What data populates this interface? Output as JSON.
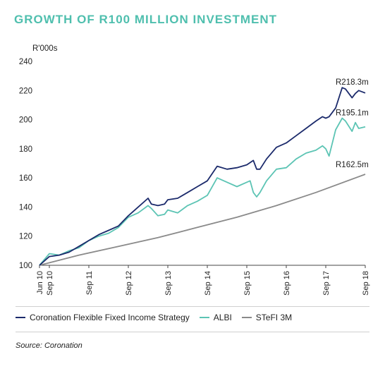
{
  "title": "GROWTH OF R100 MILLION INVESTMENT",
  "source": "Source: Coronation",
  "colors": {
    "title": "#4fbfae",
    "cfs": "#1b2a6b",
    "albi": "#5cc4b4",
    "stefi": "#8a8a8a"
  },
  "chart_data": {
    "type": "line",
    "ylabel": "R'000s",
    "ylim": [
      100,
      240
    ],
    "yticks": [
      100,
      120,
      140,
      160,
      180,
      200,
      220,
      240
    ],
    "xlim": [
      0,
      99
    ],
    "x_tick_labels": [
      {
        "label": "Jun 10",
        "x": 0
      },
      {
        "label": "Sep 10",
        "x": 3
      },
      {
        "label": "Sep 11",
        "x": 15
      },
      {
        "label": "Sep 12",
        "x": 27
      },
      {
        "label": "Sep 13",
        "x": 39
      },
      {
        "label": "Sep 14",
        "x": 51
      },
      {
        "label": "Sep 15",
        "x": 63
      },
      {
        "label": "Sep 16",
        "x": 75
      },
      {
        "label": "Sep 17",
        "x": 87
      },
      {
        "label": "Sep 18",
        "x": 99
      }
    ],
    "grid": false,
    "legend": "bottom",
    "series": [
      {
        "name": "Coronation Flexible Fixed Income Strategy",
        "color": "#1b2a6b",
        "end_label": "R218.3m",
        "points": [
          [
            0,
            100
          ],
          [
            3,
            106
          ],
          [
            6,
            107
          ],
          [
            9,
            109
          ],
          [
            12,
            113
          ],
          [
            15,
            117
          ],
          [
            18,
            121
          ],
          [
            21,
            124
          ],
          [
            24,
            127
          ],
          [
            27,
            134
          ],
          [
            30,
            140
          ],
          [
            33,
            146
          ],
          [
            34,
            142
          ],
          [
            36,
            141
          ],
          [
            38,
            142
          ],
          [
            39,
            145
          ],
          [
            42,
            146
          ],
          [
            45,
            150
          ],
          [
            48,
            154
          ],
          [
            51,
            158
          ],
          [
            54,
            168
          ],
          [
            57,
            166
          ],
          [
            60,
            167
          ],
          [
            63,
            169
          ],
          [
            65,
            172
          ],
          [
            66,
            166
          ],
          [
            67,
            166
          ],
          [
            69,
            173
          ],
          [
            72,
            181
          ],
          [
            75,
            184
          ],
          [
            78,
            189
          ],
          [
            81,
            194
          ],
          [
            84,
            199
          ],
          [
            86,
            202
          ],
          [
            87,
            201
          ],
          [
            88,
            202
          ],
          [
            90,
            208
          ],
          [
            92,
            222
          ],
          [
            93,
            221
          ],
          [
            95,
            215
          ],
          [
            96,
            218
          ],
          [
            97,
            220
          ],
          [
            99,
            218.3
          ]
        ]
      },
      {
        "name": "ALBI",
        "color": "#5cc4b4",
        "end_label": "R195.1m",
        "points": [
          [
            0,
            100
          ],
          [
            3,
            108
          ],
          [
            6,
            107
          ],
          [
            9,
            110
          ],
          [
            12,
            112
          ],
          [
            15,
            117
          ],
          [
            18,
            120
          ],
          [
            21,
            122
          ],
          [
            24,
            126
          ],
          [
            27,
            133
          ],
          [
            30,
            136
          ],
          [
            33,
            141
          ],
          [
            34,
            139
          ],
          [
            36,
            134
          ],
          [
            38,
            135
          ],
          [
            39,
            138
          ],
          [
            42,
            136
          ],
          [
            45,
            141
          ],
          [
            48,
            144
          ],
          [
            51,
            148
          ],
          [
            54,
            160
          ],
          [
            57,
            157
          ],
          [
            60,
            154
          ],
          [
            63,
            157
          ],
          [
            64,
            158
          ],
          [
            65,
            150
          ],
          [
            66,
            147
          ],
          [
            67,
            150
          ],
          [
            69,
            158
          ],
          [
            72,
            166
          ],
          [
            75,
            167
          ],
          [
            78,
            173
          ],
          [
            81,
            177
          ],
          [
            84,
            179
          ],
          [
            86,
            182
          ],
          [
            87,
            180
          ],
          [
            88,
            175
          ],
          [
            90,
            193
          ],
          [
            92,
            201
          ],
          [
            93,
            199
          ],
          [
            95,
            192
          ],
          [
            96,
            198
          ],
          [
            97,
            194
          ],
          [
            99,
            195.1
          ]
        ]
      },
      {
        "name": "STeFI 3M",
        "color": "#8a8a8a",
        "end_label": "R162.5m",
        "points": [
          [
            0,
            100
          ],
          [
            12,
            107
          ],
          [
            24,
            113
          ],
          [
            36,
            119
          ],
          [
            48,
            126
          ],
          [
            60,
            133
          ],
          [
            72,
            141
          ],
          [
            84,
            150
          ],
          [
            99,
            162.5
          ]
        ]
      }
    ]
  }
}
